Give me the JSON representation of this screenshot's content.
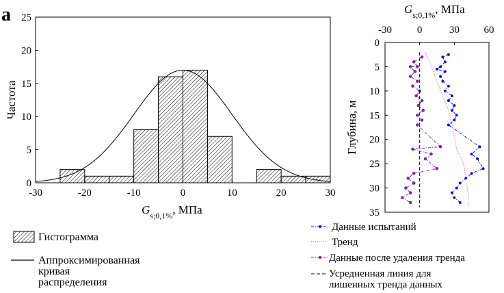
{
  "panel_label": "a",
  "legend_left": {
    "histogram": "Гистограмма",
    "curve_line1": "Аппроксимированная",
    "curve_line2": "кривая",
    "curve_line3": "распределения"
  },
  "legend_right": {
    "test_data": "Данные испытаний",
    "trend": "Тренд",
    "detrended": "Данные после удаления тренда",
    "mean_line1": "Усредненная линия для",
    "mean_line2": "лишенных тренда данных"
  },
  "colors": {
    "test_data": "#1010c8",
    "trend": "#ff4040",
    "detrended": "#7a2a9a",
    "mean_line": "#000000",
    "hist_fill_hatch": "#000000"
  },
  "chart_data": [
    {
      "type": "bar",
      "subtype": "histogram_with_fitted_normal",
      "xlabel": {
        "main": "G",
        "sub": "s;0,1%",
        "unit": ", МПа"
      },
      "ylabel": "Частота",
      "xlim": [
        -30,
        30
      ],
      "ylim": [
        0,
        25
      ],
      "xticks": [
        -30,
        -20,
        -10,
        0,
        10,
        20,
        30
      ],
      "yticks": [
        0,
        5,
        10,
        15,
        20,
        25
      ],
      "bins": [
        {
          "from": -25,
          "to": -20,
          "count": 2
        },
        {
          "from": -20,
          "to": -15,
          "count": 1
        },
        {
          "from": -15,
          "to": -10,
          "count": 1
        },
        {
          "from": -10,
          "to": -5,
          "count": 8
        },
        {
          "from": -5,
          "to": 0,
          "count": 16
        },
        {
          "from": 0,
          "to": 5,
          "count": 17
        },
        {
          "from": 5,
          "to": 10,
          "count": 7
        },
        {
          "from": 10,
          "to": 15,
          "count": 0
        },
        {
          "from": 15,
          "to": 20,
          "count": 2
        },
        {
          "from": 20,
          "to": 25,
          "count": 1
        },
        {
          "from": 25,
          "to": 30,
          "count": 1
        }
      ],
      "fitted_curve": {
        "distribution": "normal",
        "mean": 0,
        "std": 10,
        "peak": 17
      },
      "legend_placement": "below"
    },
    {
      "type": "line",
      "xlabel": {
        "main": "G",
        "sub": "s;0,1%",
        "unit": ", МПа"
      },
      "ylabel": "Глубина, м",
      "x_axis_position": "top",
      "y_axis_inverted": true,
      "xlim": [
        -30,
        60
      ],
      "ylim": [
        0,
        35
      ],
      "xticks": [
        -30,
        0,
        30,
        60
      ],
      "yticks": [
        0,
        5,
        10,
        15,
        20,
        25,
        30,
        35
      ],
      "series": [
        {
          "name": "Данные испытаний",
          "style": "dash-dot with markers",
          "points": [
            [
              25,
              2.5
            ],
            [
              20,
              3
            ],
            [
              22,
              4
            ],
            [
              18,
              5
            ],
            [
              15,
              5.5
            ],
            [
              22,
              6
            ],
            [
              18,
              7
            ],
            [
              20,
              8
            ],
            [
              25,
              9
            ],
            [
              22,
              10
            ],
            [
              28,
              11
            ],
            [
              25,
              12
            ],
            [
              30,
              13
            ],
            [
              28,
              14
            ],
            [
              32,
              15
            ],
            [
              30,
              16
            ],
            [
              25,
              17
            ],
            [
              52,
              21.5
            ],
            [
              45,
              23
            ],
            [
              50,
              24
            ],
            [
              55,
              26
            ],
            [
              45,
              27
            ],
            [
              40,
              28
            ],
            [
              35,
              29
            ],
            [
              32,
              30
            ],
            [
              28,
              31
            ],
            [
              30,
              32
            ],
            [
              35,
              33
            ]
          ]
        },
        {
          "name": "Тренд",
          "style": "dotted",
          "points": [
            [
              5,
              2
            ],
            [
              10,
              5
            ],
            [
              15,
              8
            ],
            [
              20,
              11
            ],
            [
              25,
              14
            ],
            [
              28,
              17
            ],
            [
              32,
              22
            ],
            [
              38,
              25
            ],
            [
              40,
              28
            ],
            [
              42,
              31
            ],
            [
              42,
              34
            ]
          ]
        },
        {
          "name": "Данные после удаления тренда",
          "style": "dash-dot with markers",
          "points": [
            [
              2,
              3
            ],
            [
              -5,
              4
            ],
            [
              -2,
              5
            ],
            [
              -8,
              5
            ],
            [
              -4,
              6
            ],
            [
              -8,
              7
            ],
            [
              -2,
              8
            ],
            [
              -6,
              9
            ],
            [
              0,
              10
            ],
            [
              -3,
              11
            ],
            [
              2,
              12
            ],
            [
              -1,
              13
            ],
            [
              3,
              14
            ],
            [
              -2,
              15
            ],
            [
              2,
              16
            ],
            [
              -2,
              17
            ],
            [
              18,
              21.5
            ],
            [
              -6,
              22
            ],
            [
              10,
              23
            ],
            [
              5,
              24
            ],
            [
              15,
              26
            ],
            [
              -5,
              27
            ],
            [
              -10,
              28
            ],
            [
              -5,
              29
            ],
            [
              -12,
              30
            ],
            [
              -8,
              31
            ],
            [
              -15,
              32
            ],
            [
              -8,
              33
            ]
          ]
        },
        {
          "name": "Усредненная линия для лишенных тренда данных",
          "style": "dashed",
          "points": [
            [
              0,
              2
            ],
            [
              0,
              34
            ]
          ]
        }
      ],
      "legend_placement": "below"
    }
  ]
}
